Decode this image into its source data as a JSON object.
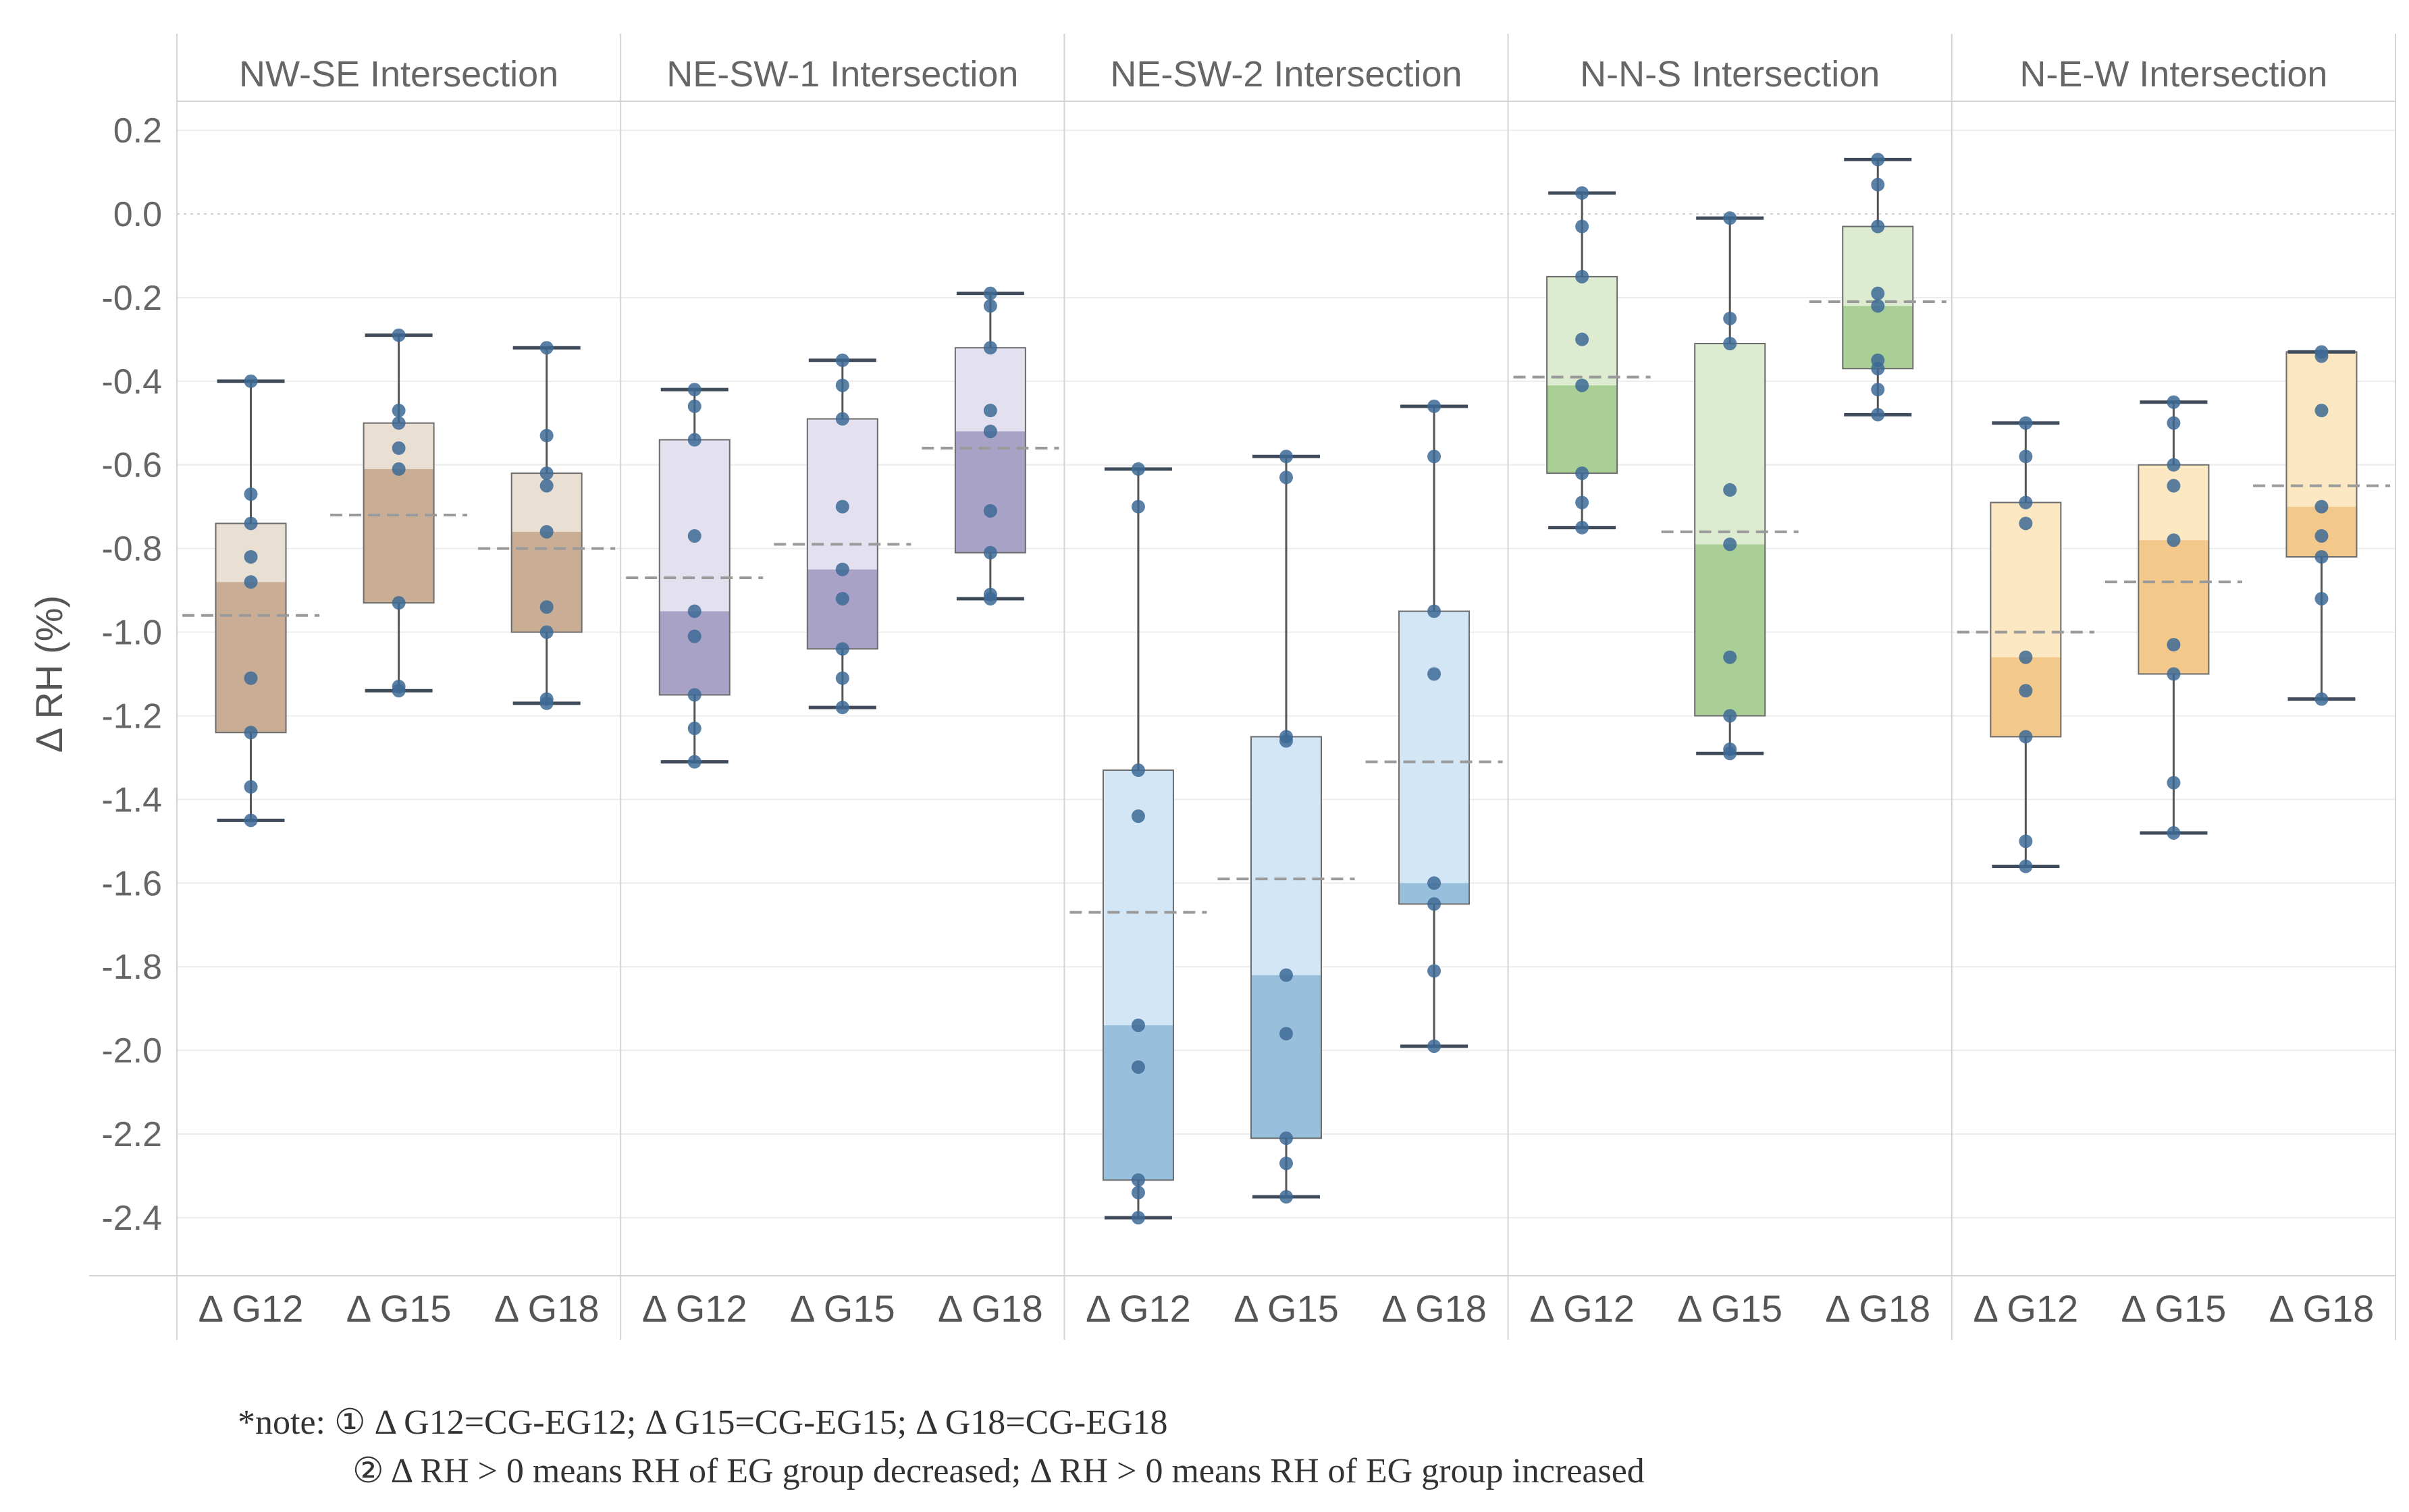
{
  "chart_data": {
    "type": "box",
    "ylabel": "Δ RH  (%)",
    "ylim": [
      -2.5,
      0.25
    ],
    "yticks": [
      0.2,
      0.0,
      -0.2,
      -0.4,
      -0.6,
      -0.8,
      -1.0,
      -1.2,
      -1.4,
      -1.6,
      -1.8,
      -2.0,
      -2.2,
      -2.4
    ],
    "ytick_labels": [
      "0.2",
      "0.0",
      "-0.2",
      "-0.4",
      "-0.6",
      "-0.8",
      "-1.0",
      "-1.2",
      "-1.4",
      "-1.6",
      "-1.8",
      "-2.0",
      "-2.2",
      "-2.4"
    ],
    "groups": [
      "ΔG12",
      "ΔG15",
      "ΔG18"
    ],
    "group_labels": [
      "Δ G12",
      "Δ G15",
      "Δ G18"
    ],
    "panels": [
      {
        "title": "NW-SE Intersection",
        "light": "#eadfd3",
        "dark": "#c9ad95",
        "boxes": [
          {
            "q1": -1.24,
            "median": -0.88,
            "q3": -0.74,
            "min": -1.45,
            "max": -0.4,
            "mean": -0.96,
            "points": [
              -0.4,
              -0.67,
              -0.74,
              -0.82,
              -0.88,
              -1.11,
              -1.24,
              -1.37,
              -1.45
            ]
          },
          {
            "q1": -0.93,
            "median": -0.61,
            "q3": -0.5,
            "min": -1.14,
            "max": -0.29,
            "mean": -0.72,
            "points": [
              -0.29,
              -0.47,
              -0.5,
              -0.56,
              -0.61,
              -0.93,
              -1.13,
              -1.14
            ]
          },
          {
            "q1": -1.0,
            "median": -0.76,
            "q3": -0.62,
            "min": -1.17,
            "max": -0.32,
            "mean": -0.8,
            "points": [
              -0.32,
              -0.53,
              -0.62,
              -0.65,
              -0.76,
              -0.94,
              -1.0,
              -1.16,
              -1.17
            ]
          }
        ]
      },
      {
        "title": "NE-SW-1 Intersection",
        "light": "#e3e0f0",
        "dark": "#a7a2c6",
        "boxes": [
          {
            "q1": -1.15,
            "median": -0.95,
            "q3": -0.54,
            "min": -1.31,
            "max": -0.42,
            "mean": -0.87,
            "points": [
              -0.42,
              -0.46,
              -0.54,
              -0.77,
              -0.95,
              -1.01,
              -1.15,
              -1.23,
              -1.31
            ]
          },
          {
            "q1": -1.04,
            "median": -0.85,
            "q3": -0.49,
            "min": -1.18,
            "max": -0.35,
            "mean": -0.79,
            "points": [
              -0.35,
              -0.41,
              -0.49,
              -0.7,
              -0.85,
              -0.92,
              -1.04,
              -1.11,
              -1.18
            ]
          },
          {
            "q1": -0.81,
            "median": -0.52,
            "q3": -0.32,
            "min": -0.92,
            "max": -0.19,
            "mean": -0.56,
            "points": [
              -0.19,
              -0.22,
              -0.32,
              -0.47,
              -0.52,
              -0.71,
              -0.81,
              -0.91,
              -0.92
            ]
          }
        ]
      },
      {
        "title": "NE-SW-2 Intersection",
        "light": "#d2e6f6",
        "dark": "#98c0dd",
        "boxes": [
          {
            "q1": -2.31,
            "median": -1.94,
            "q3": -1.33,
            "min": -2.4,
            "max": -0.61,
            "mean": -1.67,
            "points": [
              -0.61,
              -0.7,
              -1.33,
              -1.44,
              -1.94,
              -2.04,
              -2.31,
              -2.34,
              -2.4
            ]
          },
          {
            "q1": -2.21,
            "median": -1.82,
            "q3": -1.25,
            "min": -2.35,
            "max": -0.58,
            "mean": -1.59,
            "points": [
              -0.58,
              -0.63,
              -1.25,
              -1.26,
              -1.82,
              -1.96,
              -2.21,
              -2.27,
              -2.35
            ]
          },
          {
            "q1": -1.65,
            "median": -1.6,
            "q3": -0.95,
            "min": -1.99,
            "max": -0.46,
            "mean": -1.31,
            "points": [
              -0.46,
              -0.58,
              -0.95,
              -1.1,
              -1.6,
              -1.65,
              -1.81,
              -1.99
            ]
          }
        ]
      },
      {
        "title": "N-N-S Intersection",
        "light": "#ddecd0",
        "dark": "#a9cf97",
        "boxes": [
          {
            "q1": -0.62,
            "median": -0.41,
            "q3": -0.15,
            "min": -0.75,
            "max": 0.05,
            "mean": -0.39,
            "points": [
              0.05,
              -0.03,
              -0.15,
              -0.3,
              -0.41,
              -0.62,
              -0.69,
              -0.75
            ]
          },
          {
            "q1": -1.2,
            "median": -0.79,
            "q3": -0.31,
            "min": -1.29,
            "max": -0.01,
            "mean": -0.76,
            "points": [
              -0.01,
              -0.25,
              -0.31,
              -0.66,
              -0.79,
              -1.06,
              -1.2,
              -1.28,
              -1.29
            ]
          },
          {
            "q1": -0.37,
            "median": -0.22,
            "q3": -0.03,
            "min": -0.48,
            "max": 0.13,
            "mean": -0.21,
            "points": [
              0.13,
              0.07,
              -0.03,
              -0.19,
              -0.22,
              -0.35,
              -0.37,
              -0.42,
              -0.48
            ]
          }
        ]
      },
      {
        "title": "N-E-W Intersection",
        "light": "#fbe8c2",
        "dark": "#f3c98b",
        "boxes": [
          {
            "q1": -1.25,
            "median": -1.06,
            "q3": -0.69,
            "min": -1.56,
            "max": -0.5,
            "mean": -1.0,
            "points": [
              -0.5,
              -0.58,
              -0.69,
              -0.74,
              -1.06,
              -1.14,
              -1.25,
              -1.5,
              -1.56
            ]
          },
          {
            "q1": -1.1,
            "median": -0.78,
            "q3": -0.6,
            "min": -1.48,
            "max": -0.45,
            "mean": -0.88,
            "points": [
              -0.45,
              -0.5,
              -0.6,
              -0.65,
              -0.78,
              -1.03,
              -1.1,
              -1.36,
              -1.48
            ]
          },
          {
            "q1": -0.82,
            "median": -0.7,
            "q3": -0.33,
            "min": -1.16,
            "max": -0.33,
            "mean": -0.65,
            "points": [
              -0.33,
              -0.34,
              -0.47,
              -0.7,
              -0.77,
              -0.82,
              -0.92,
              -1.16
            ]
          }
        ]
      }
    ]
  },
  "note": {
    "line1": "*note: ① Δ G12=CG-EG12; Δ G15=CG-EG15; Δ G18=CG-EG18",
    "line2": "② Δ RH > 0 means RH of EG group decreased; Δ RH > 0 means RH of EG group increased"
  }
}
